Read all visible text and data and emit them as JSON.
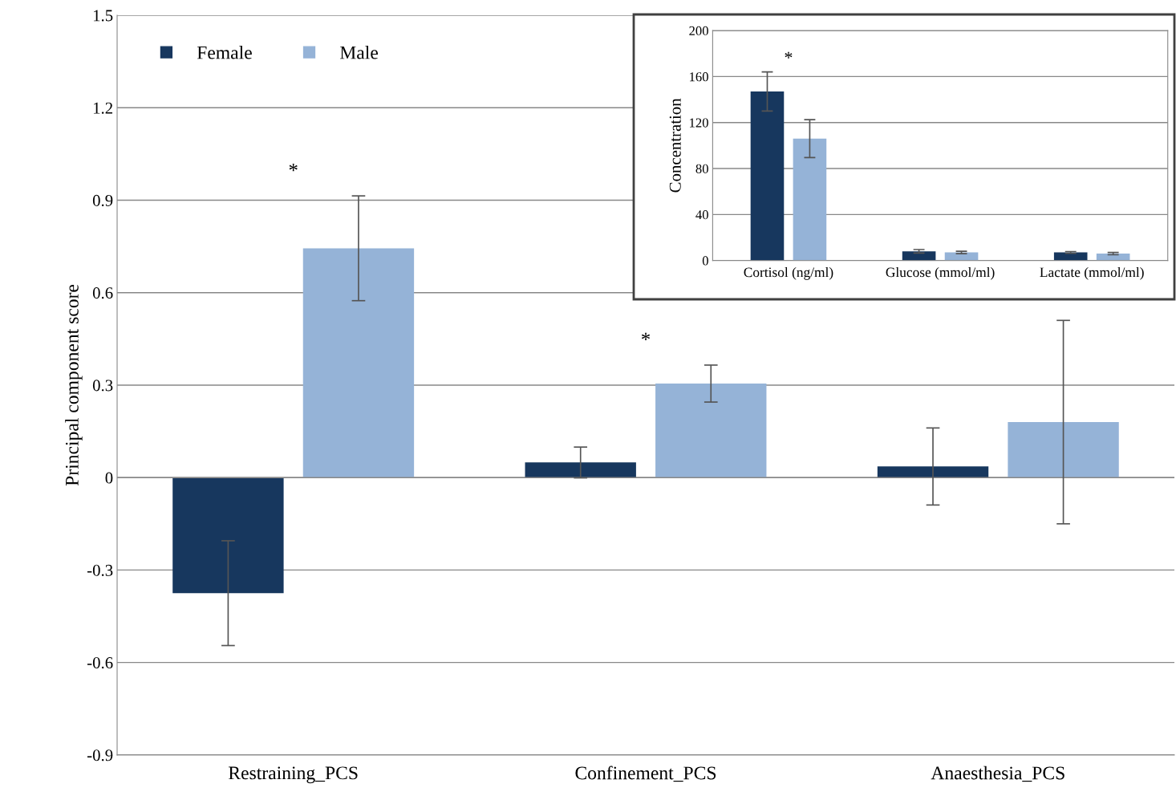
{
  "chart_data": [
    {
      "type": "bar",
      "ylabel": "Principal component score",
      "categories": [
        "Restraining_PCS",
        "Confinement_PCS",
        "Anaesthesia_PCS"
      ],
      "series": [
        {
          "name": "Female",
          "color": "#17375e",
          "values": [
            -0.375,
            0.049,
            0.036
          ],
          "errors": [
            0.17,
            0.05,
            0.125
          ]
        },
        {
          "name": "Male",
          "color": "#95b3d7",
          "values": [
            0.744,
            0.305,
            0.18
          ],
          "errors": [
            0.17,
            0.06,
            0.33
          ]
        }
      ],
      "ylim": [
        -0.9,
        1.5
      ],
      "yticks": [
        -0.9,
        -0.6,
        -0.3,
        0,
        0.3,
        0.6,
        0.9,
        1.2,
        1.5
      ],
      "grid": "y",
      "legend": "top left",
      "annotations": [
        "*",
        "*"
      ]
    },
    {
      "type": "bar",
      "ylabel": "Concentration",
      "categories": [
        "Cortisol (ng/ml)",
        "Glucose (mmol/ml)",
        "Lactate (mmol/ml)"
      ],
      "series": [
        {
          "color": "#17375e",
          "values": [
            147,
            8,
            7
          ],
          "errors": [
            17,
            1.5,
            0.8
          ]
        },
        {
          "color": "#95b3d7",
          "values": [
            106,
            7,
            6
          ],
          "errors": [
            16.5,
            1,
            1
          ]
        }
      ],
      "ylim": [
        0,
        200
      ],
      "yticks": [
        0,
        40,
        80,
        120,
        160,
        200
      ],
      "grid": "y",
      "legend": false,
      "annotations": [
        "*"
      ]
    }
  ]
}
